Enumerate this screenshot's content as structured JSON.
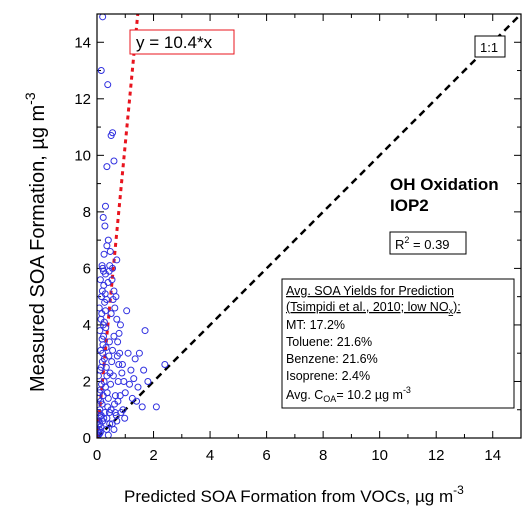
{
  "chart_data": {
    "type": "scatter",
    "title": "",
    "xlabel": "Predicted SOA Formation from VOCs, µg m",
    "xlabel_exp": "-3",
    "ylabel": "Measured SOA Formation, µg m",
    "ylabel_exp": "-3",
    "xlim": [
      0,
      15
    ],
    "ylim": [
      0,
      15
    ],
    "xticks": [
      0,
      2,
      4,
      6,
      8,
      10,
      12,
      14
    ],
    "yticks": [
      0,
      2,
      4,
      6,
      8,
      10,
      12,
      14
    ],
    "colors": {
      "points": "#3030e0",
      "fit_line": "#e8141e",
      "one_to_one": "#000000"
    },
    "fit_line": {
      "label": "y = 10.4*x",
      "slope": 10.4
    },
    "one_to_one": {
      "label": "1:1",
      "slope": 1
    },
    "annotation_title": [
      "OH Oxidation",
      "IOP2"
    ],
    "r2": {
      "prefix": "R",
      "sup": "2",
      "value": " = 0.39"
    },
    "yields_box": {
      "header_line1": "Avg. SOA Yields for Prediction",
      "header_line2": "(Tsimpidi et al., 2010; low NO",
      "header_line2_sub": "x",
      "header_line2_end": "):",
      "items": [
        "MT: 17.2%",
        "Toluene: 21.6%",
        "Benzene: 21.6%",
        "Isoprene: 2.4%"
      ],
      "avg_prefix": "Avg. C",
      "avg_sub": "OA",
      "avg_value": "= 10.2 µg m",
      "avg_exp": "-3"
    },
    "points": [
      [
        0.05,
        0.1
      ],
      [
        0.08,
        0.3
      ],
      [
        0.1,
        0.5
      ],
      [
        0.12,
        0.2
      ],
      [
        0.15,
        0.8
      ],
      [
        0.18,
        1.2
      ],
      [
        0.2,
        0.6
      ],
      [
        0.22,
        1.5
      ],
      [
        0.1,
        1.0
      ],
      [
        0.05,
        0.6
      ],
      [
        0.25,
        2.0
      ],
      [
        0.28,
        0.9
      ],
      [
        0.3,
        1.8
      ],
      [
        0.15,
        2.5
      ],
      [
        0.2,
        3.0
      ],
      [
        0.12,
        1.7
      ],
      [
        0.35,
        2.2
      ],
      [
        0.4,
        1.4
      ],
      [
        0.32,
        3.2
      ],
      [
        0.18,
        3.5
      ],
      [
        0.22,
        4.0
      ],
      [
        0.26,
        2.8
      ],
      [
        0.3,
        4.5
      ],
      [
        0.14,
        4.2
      ],
      [
        0.1,
        3.8
      ],
      [
        0.16,
        5.0
      ],
      [
        0.24,
        5.4
      ],
      [
        0.2,
        6.0
      ],
      [
        0.3,
        5.8
      ],
      [
        0.12,
        5.6
      ],
      [
        0.35,
        6.8
      ],
      [
        0.18,
        6.1
      ],
      [
        0.25,
        6.5
      ],
      [
        0.4,
        7.0
      ],
      [
        0.45,
        6.1
      ],
      [
        0.28,
        7.5
      ],
      [
        0.3,
        8.2
      ],
      [
        0.22,
        7.8
      ],
      [
        0.35,
        9.6
      ],
      [
        0.6,
        9.8
      ],
      [
        0.55,
        10.8
      ],
      [
        0.5,
        10.7
      ],
      [
        0.38,
        12.5
      ],
      [
        0.2,
        14.9
      ],
      [
        0.15,
        13.0
      ],
      [
        0.55,
        6.0
      ],
      [
        0.6,
        5.2
      ],
      [
        0.5,
        4.4
      ],
      [
        0.7,
        6.3
      ],
      [
        0.55,
        3.1
      ],
      [
        0.6,
        3.6
      ],
      [
        0.7,
        4.2
      ],
      [
        0.8,
        3.0
      ],
      [
        0.9,
        2.6
      ],
      [
        0.75,
        2.0
      ],
      [
        0.65,
        1.5
      ],
      [
        1.0,
        1.6
      ],
      [
        1.1,
        3.0
      ],
      [
        1.2,
        2.4
      ],
      [
        1.3,
        2.1
      ],
      [
        1.05,
        4.5
      ],
      [
        0.95,
        2.0
      ],
      [
        1.4,
        1.3
      ],
      [
        1.6,
        1.1
      ],
      [
        1.5,
        3.0
      ],
      [
        1.8,
        2.0
      ],
      [
        2.1,
        1.1
      ],
      [
        2.4,
        2.6
      ],
      [
        1.7,
        3.8
      ],
      [
        1.65,
        2.4
      ],
      [
        0.4,
        0.1
      ],
      [
        0.6,
        0.3
      ],
      [
        0.7,
        0.6
      ],
      [
        0.85,
        0.9
      ],
      [
        0.5,
        1.0
      ],
      [
        0.45,
        0.5
      ],
      [
        0.35,
        0.7
      ],
      [
        0.05,
        2.2
      ],
      [
        0.08,
        4.6
      ],
      [
        0.06,
        1.4
      ],
      [
        0.02,
        0.05
      ],
      [
        0.03,
        0.25
      ],
      [
        0.04,
        0.45
      ],
      [
        0.09,
        0.15
      ],
      [
        0.11,
        0.75
      ],
      [
        0.13,
        1.3
      ],
      [
        0.16,
        1.9
      ],
      [
        0.19,
        2.7
      ],
      [
        0.21,
        3.3
      ],
      [
        0.23,
        3.6
      ],
      [
        0.27,
        4.8
      ],
      [
        0.29,
        5.1
      ],
      [
        0.31,
        3.9
      ],
      [
        0.33,
        2.5
      ],
      [
        0.36,
        1.6
      ],
      [
        0.38,
        1.1
      ],
      [
        0.42,
        2.9
      ],
      [
        0.44,
        3.4
      ],
      [
        0.46,
        2.3
      ],
      [
        0.48,
        1.9
      ],
      [
        0.52,
        2.7
      ],
      [
        0.58,
        2.2
      ],
      [
        0.62,
        1.2
      ],
      [
        0.68,
        0.8
      ],
      [
        0.72,
        2.9
      ],
      [
        0.78,
        3.7
      ],
      [
        0.82,
        1.5
      ],
      [
        0.88,
        2.3
      ],
      [
        0.92,
        1.0
      ],
      [
        0.98,
        0.7
      ],
      [
        0.07,
        0.9
      ],
      [
        0.09,
        1.6
      ],
      [
        0.11,
        2.4
      ],
      [
        0.13,
        3.1
      ],
      [
        0.17,
        4.4
      ],
      [
        0.19,
        5.2
      ],
      [
        0.23,
        5.9
      ],
      [
        0.26,
        4.1
      ],
      [
        0.34,
        4.9
      ],
      [
        0.39,
        5.5
      ],
      [
        0.43,
        5.9
      ],
      [
        0.47,
        6.6
      ],
      [
        0.53,
        5.6
      ],
      [
        0.57,
        4.9
      ],
      [
        0.63,
        4.6
      ],
      [
        0.67,
        5.0
      ],
      [
        0.73,
        3.4
      ],
      [
        0.77,
        2.6
      ],
      [
        0.83,
        4.0
      ],
      [
        1.15,
        1.9
      ],
      [
        1.25,
        1.4
      ],
      [
        1.35,
        2.8
      ],
      [
        1.45,
        1.8
      ],
      [
        0.14,
        0.4
      ],
      [
        0.24,
        0.7
      ],
      [
        0.34,
        0.3
      ],
      [
        0.44,
        0.9
      ],
      [
        0.54,
        0.5
      ],
      [
        0.64,
        0.9
      ],
      [
        0.74,
        1.3
      ]
    ]
  }
}
